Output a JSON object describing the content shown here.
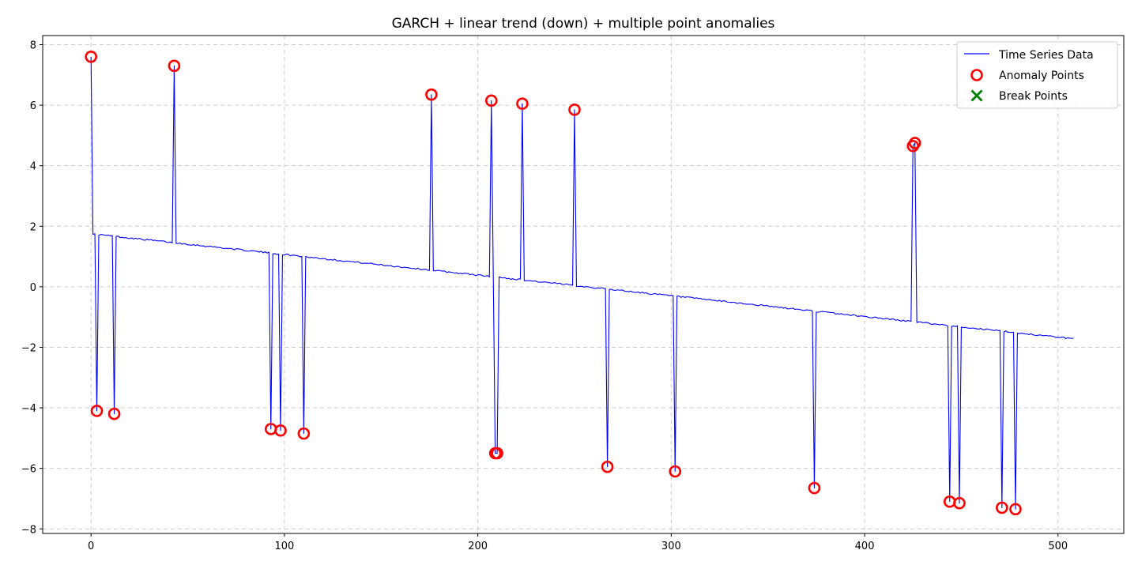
{
  "chart_data": {
    "type": "line",
    "title": "GARCH + linear trend (down) + multiple point anomalies",
    "xlabel": "",
    "ylabel": "",
    "xlim": [
      -25,
      534
    ],
    "ylim": [
      -8.15,
      8.3
    ],
    "xticks": [
      0,
      100,
      200,
      300,
      400,
      500
    ],
    "yticks": [
      -8,
      -6,
      -4,
      -2,
      0,
      2,
      4,
      6,
      8
    ],
    "grid": true,
    "legend_position": "top-right",
    "colors": {
      "line": "#0000ff",
      "anomaly": "#ff0000",
      "break": "#008000"
    },
    "series": [
      {
        "name": "Time Series Data",
        "baseline_start": 1.75,
        "baseline_end": -1.72,
        "length": 509,
        "anomalies": [
          [
            0,
            7.6
          ],
          [
            3,
            -4.1
          ],
          [
            12,
            -4.2
          ],
          [
            43,
            7.3
          ],
          [
            93,
            -4.7
          ],
          [
            98,
            -4.75
          ],
          [
            110,
            -4.85
          ],
          [
            176,
            6.35
          ],
          [
            207,
            6.15
          ],
          [
            209,
            -5.5
          ],
          [
            210,
            -5.5
          ],
          [
            223,
            6.05
          ],
          [
            250,
            5.85
          ],
          [
            267,
            -5.95
          ],
          [
            302,
            -6.1
          ],
          [
            374,
            -6.65
          ],
          [
            425,
            4.65
          ],
          [
            426,
            4.75
          ],
          [
            444,
            -7.1
          ],
          [
            449,
            -7.15
          ],
          [
            471,
            -7.3
          ],
          [
            478,
            -7.35
          ]
        ]
      },
      {
        "name": "Anomaly Points",
        "points": [
          [
            0,
            7.6
          ],
          [
            3,
            -4.1
          ],
          [
            12,
            -4.2
          ],
          [
            43,
            7.3
          ],
          [
            93,
            -4.7
          ],
          [
            98,
            -4.75
          ],
          [
            110,
            -4.85
          ],
          [
            176,
            6.35
          ],
          [
            207,
            6.15
          ],
          [
            209,
            -5.5
          ],
          [
            210,
            -5.5
          ],
          [
            223,
            6.05
          ],
          [
            250,
            5.85
          ],
          [
            267,
            -5.95
          ],
          [
            302,
            -6.1
          ],
          [
            374,
            -6.65
          ],
          [
            425,
            4.65
          ],
          [
            426,
            4.75
          ],
          [
            444,
            -7.1
          ],
          [
            449,
            -7.15
          ],
          [
            471,
            -7.3
          ],
          [
            478,
            -7.35
          ]
        ]
      },
      {
        "name": "Break Points",
        "points": []
      }
    ]
  }
}
